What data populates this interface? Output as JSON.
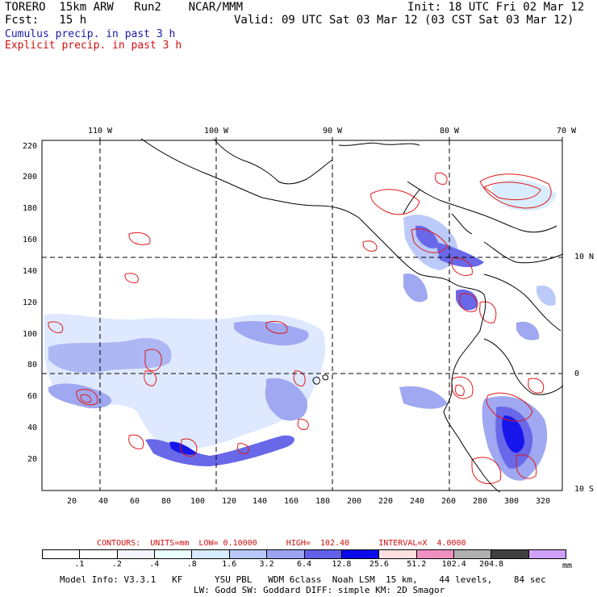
{
  "header": {
    "line1_left": "TORERO  15km ARW   Run2    NCAR/MMM",
    "line1_right": "Init: 18 UTC Fri 02 Mar 12",
    "line2_left": "Fcst:   15 h",
    "line2_right": "Valid: 09 UTC Sat 03 Mar 12 (03 CST Sat 03 Mar 12)",
    "line3": "Cumulus precip. in past 3 h",
    "line4": "Explicit precip. in past 3 h"
  },
  "map": {
    "lon_labels": [
      "110 W",
      "100 W",
      "90 W",
      "80 W",
      "70 W"
    ],
    "lat_labels": [
      "10 N",
      "0",
      "10 S"
    ],
    "y_ticks": [
      "220",
      "200",
      "180",
      "160",
      "140",
      "120",
      "100",
      "80",
      "60",
      "40",
      "20"
    ],
    "x_ticks": [
      "20",
      "40",
      "60",
      "80",
      "100",
      "120",
      "140",
      "160",
      "180",
      "200",
      "220",
      "240",
      "260",
      "280",
      "300",
      "320"
    ],
    "colors": {
      "cumulus": "#3a3ad8",
      "explicit": "#e01818",
      "coast": "#000000"
    }
  },
  "contours_line": "CONTOURS:  UNITS=mm  LOW= 0.10000      HIGH=  102.40      INTERVAL=X  4.0000",
  "colorbar": {
    "labels": [
      ".1",
      ".2",
      ".4",
      ".8",
      "1.6",
      "3.2",
      "6.4",
      "12.8",
      "25.6",
      "51.2",
      "102.4",
      "204.8"
    ],
    "units": "mm",
    "colors": [
      "#ffffff",
      "#ffffff",
      "#f4f4ff",
      "#eaffff",
      "#d8ecff",
      "#b8c8f8",
      "#9aa4f0",
      "#6060e8",
      "#0a0aeb",
      "#ffe0e0",
      "#f090c0",
      "#b0b0b0",
      "#404040",
      "#d0a0f8"
    ]
  },
  "footer": {
    "line1": "Model Info: V3.3.1   KF      YSU PBL   WDM 6class  Noah LSM  15 km,    44 levels,    84 sec",
    "line2": "LW: Godd SW: Goddard DIFF: simple KM: 2D Smagor"
  }
}
